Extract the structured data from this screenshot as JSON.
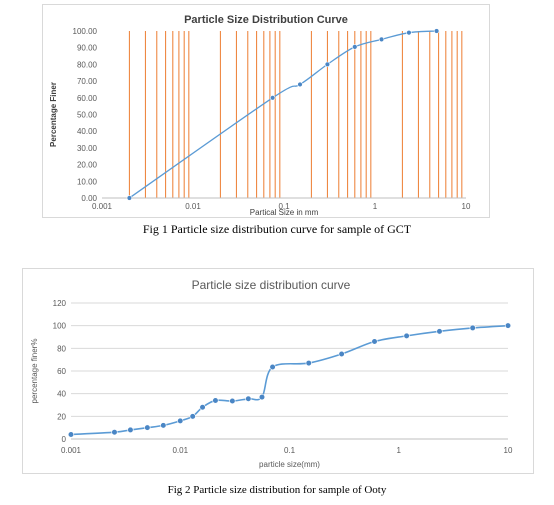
{
  "captions": {
    "fig1": "Fig 1 Particle size distribution curve for sample of GCT",
    "fig2": "Fig 2 Particle size distribution for sample of Ooty"
  },
  "colors": {
    "line": "#5b9bd5",
    "marker": "#4a86c5",
    "vgrid_fig1": "#ed7d31",
    "gridline": "#d9d9d9",
    "text": "#595959"
  },
  "chart_data": [
    {
      "type": "line",
      "title": "Particle Size Distribution Curve",
      "xlabel": "Partical Size in mm",
      "ylabel": "Percentage Finer",
      "x_scale": "log",
      "xlim": [
        0.001,
        10
      ],
      "ylim": [
        0,
        100
      ],
      "x_ticks": [
        0.001,
        0.01,
        0.1,
        1,
        10
      ],
      "x_tick_labels": [
        "0.001",
        "0.01",
        "0.1",
        "1",
        "10"
      ],
      "y_ticks": [
        0,
        10,
        20,
        30,
        40,
        50,
        60,
        70,
        80,
        90,
        100
      ],
      "y_tick_labels": [
        "0.00",
        "10.00",
        "20.00",
        "30.00",
        "40.00",
        "50.00",
        "60.00",
        "70.00",
        "80.00",
        "90.00",
        "100.00"
      ],
      "vertical_grid_x": [
        0.002,
        0.003,
        0.004,
        0.005,
        0.006,
        0.007,
        0.008,
        0.009,
        0.02,
        0.03,
        0.04,
        0.05,
        0.06,
        0.07,
        0.08,
        0.09,
        0.2,
        0.3,
        0.4,
        0.5,
        0.6,
        0.7,
        0.8,
        0.9,
        2,
        3,
        4,
        5,
        6,
        7,
        8,
        9
      ],
      "grid": "vertical",
      "legend": "none",
      "x": [
        0.002,
        0.075,
        0.15,
        0.3,
        0.6,
        1.18,
        2.36,
        4.75
      ],
      "y": [
        0,
        60,
        68,
        80,
        90.5,
        95,
        99,
        100
      ]
    },
    {
      "type": "line",
      "title": "Particle size distribution curve",
      "xlabel": "particle size(mm)",
      "ylabel": "percentage finer%",
      "x_scale": "log",
      "xlim": [
        0.001,
        10
      ],
      "ylim": [
        0,
        120
      ],
      "x_ticks": [
        0.001,
        0.01,
        0.1,
        1,
        10
      ],
      "x_tick_labels": [
        "0.001",
        "0.01",
        "0.1",
        "1",
        "10"
      ],
      "y_ticks": [
        0,
        20,
        40,
        60,
        80,
        100,
        120
      ],
      "y_tick_labels": [
        "0",
        "20",
        "40",
        "60",
        "80",
        "100",
        "120"
      ],
      "grid": "horizontal",
      "legend": "none",
      "x": [
        0.001,
        0.0025,
        0.0035,
        0.005,
        0.007,
        0.01,
        0.013,
        0.016,
        0.021,
        0.03,
        0.042,
        0.056,
        0.07,
        0.15,
        0.3,
        0.6,
        1.18,
        2.36,
        4.75,
        10
      ],
      "y": [
        4,
        6,
        8,
        10,
        12,
        16,
        20,
        28,
        34,
        33.5,
        35.5,
        37,
        63.5,
        67,
        75,
        86,
        91,
        95,
        98,
        100
      ]
    }
  ]
}
